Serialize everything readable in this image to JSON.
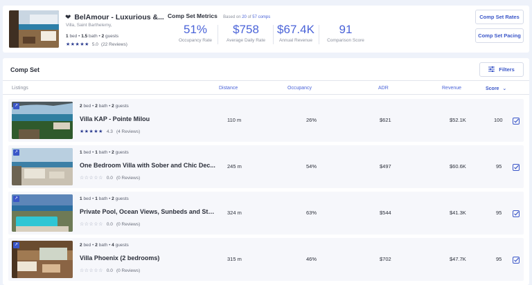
{
  "property": {
    "name": "BelAmour - Luxurious &...",
    "location": "Villa, Saint Barthelemy,",
    "beds": "1",
    "beds_label": "bed",
    "baths": "1.5",
    "baths_label": "bath",
    "guests": "2",
    "guests_label": "guests",
    "rating": "5.0",
    "reviews": "(22 Reviews)"
  },
  "metrics": {
    "title": "Comp Set Metrics",
    "based_prefix": "Based on",
    "based_count": "20",
    "based_mid": "of",
    "based_total": "57 comps",
    "items": [
      {
        "value": "51%",
        "label": "Occupancy Rate"
      },
      {
        "value": "$758",
        "label": "Average Daily Rate"
      },
      {
        "value": "$67.4K",
        "label": "Annual Revenue"
      },
      {
        "value": "91",
        "label": "Comparison Score"
      }
    ]
  },
  "buttons": {
    "comp_set_rates": "Comp Set Rates",
    "comp_set_pacing": "Comp Set Pacing",
    "filters": "Filters"
  },
  "comp_set": {
    "title": "Comp Set",
    "columns": {
      "listings": "Listings",
      "distance": "Distance",
      "occupancy": "Occupancy",
      "adr": "ADR",
      "revenue": "Revenue",
      "score": "Score"
    },
    "rows": [
      {
        "beds": "2",
        "baths": "2",
        "guests": "2",
        "name": "Villa KAP - Pointe Milou",
        "rating": "4.3",
        "reviews": "(4 Reviews)",
        "distance": "110 m",
        "occupancy": "26%",
        "adr": "$621",
        "revenue": "$52.1K",
        "score": "100"
      },
      {
        "beds": "1",
        "baths": "1",
        "guests": "2",
        "name": "One Bedroom Villa with Sober and Chic Dec...",
        "rating": "0.0",
        "reviews": "(0 Reviews)",
        "distance": "245 m",
        "occupancy": "54%",
        "adr": "$497",
        "revenue": "$60.6K",
        "score": "95"
      },
      {
        "beds": "1",
        "baths": "1",
        "guests": "2",
        "name": "Private Pool, Ocean Views, Sunbeds and Sto...",
        "rating": "0.0",
        "reviews": "(0 Reviews)",
        "distance": "324 m",
        "occupancy": "63%",
        "adr": "$544",
        "revenue": "$41.3K",
        "score": "95"
      },
      {
        "beds": "2",
        "baths": "2",
        "guests": "4",
        "name": "Villa Phoenix (2 bedrooms)",
        "rating": "0.0",
        "reviews": "(0 Reviews)",
        "distance": "315 m",
        "occupancy": "46%",
        "adr": "$702",
        "revenue": "$47.7K",
        "score": "95"
      }
    ]
  },
  "labels": {
    "bed": "bed",
    "bath": "bath",
    "guests": "guests",
    "stars_full": "★★★★★",
    "stars_four": "★★★★★",
    "stars_empty": "☆☆☆☆☆",
    "heart": "❤",
    "badge": "↗",
    "sort_arrow": "⌄",
    "filter_glyph": "☰"
  },
  "colors": {
    "accent": "#4a63d8",
    "button_text": "#3a56c8",
    "star": "#2a3b8f",
    "background": "#eef2fa"
  },
  "icons": [
    "heart-icon",
    "star-icon",
    "filter-icon",
    "sort-icon",
    "checkbox-icon",
    "link-badge-icon"
  ]
}
